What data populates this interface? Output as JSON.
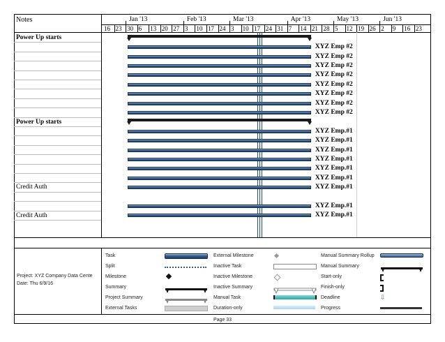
{
  "header": {
    "notes_label": "Notes",
    "months": [
      "Jan '13",
      "Feb '13",
      "Mar '13",
      "Apr '13",
      "May '13",
      "Jun '13"
    ],
    "days": [
      "16",
      "23",
      "30",
      "6",
      "13",
      "20",
      "27",
      "3",
      "10",
      "17",
      "24",
      "3",
      "10",
      "17",
      "24",
      "31",
      "7",
      "14",
      "21",
      "28",
      "5",
      "12",
      "19",
      "26",
      "2",
      "9",
      "16",
      "23"
    ]
  },
  "rows": [
    {
      "task": "Power Up starts",
      "task_style": "bold",
      "kind": "summary",
      "label": ""
    },
    {
      "task": "",
      "kind": "bar",
      "label": "XYZ Emp #2"
    },
    {
      "task": "",
      "kind": "bar",
      "label": "XYZ Emp #2"
    },
    {
      "task": "",
      "kind": "bar",
      "label": "XYZ Emp #2"
    },
    {
      "task": "",
      "kind": "bar",
      "label": "XYZ Emp #2"
    },
    {
      "task": "",
      "kind": "bar",
      "label": "XYZ Emp #2"
    },
    {
      "task": "",
      "kind": "bar",
      "label": "XYZ Emp #2"
    },
    {
      "task": "",
      "kind": "bar",
      "label": "XYZ Emp #2"
    },
    {
      "task": "",
      "kind": "bar",
      "label": "XYZ Emp #2"
    },
    {
      "task": "Power Up starts",
      "task_style": "bold",
      "kind": "summary",
      "label": ""
    },
    {
      "task": "",
      "kind": "bar",
      "label": "XYZ Emp.#1"
    },
    {
      "task": "",
      "kind": "bar",
      "label": "XYZ Emp.#1"
    },
    {
      "task": "",
      "kind": "bar",
      "label": "XYZ Emp.#1"
    },
    {
      "task": "",
      "kind": "bar",
      "label": "XYZ Emp.#1"
    },
    {
      "task": "",
      "kind": "bar",
      "label": "XYZ Emp.#1"
    },
    {
      "task": "",
      "kind": "bar",
      "label": "XYZ Emp.#1"
    },
    {
      "task": "Credit Auth",
      "task_style": "normal",
      "kind": "bar",
      "label": "XYZ Emp.#1"
    },
    {
      "task": "",
      "kind": "none",
      "label": ""
    },
    {
      "task": "",
      "kind": "bar",
      "label": "XYZ Emp.#1"
    },
    {
      "task": "Credit Auth",
      "task_style": "normal",
      "kind": "bar",
      "label": "XYZ Emp.#1"
    }
  ],
  "footer": {
    "project": "Project: XYZ Company Data Cente",
    "date": "Date: Thu 6/9/16",
    "page": "Page 33"
  },
  "legend": {
    "col1": [
      "Task",
      "Split",
      "Milestone",
      "Summary",
      "Project Summary",
      "External Tasks"
    ],
    "col2": [
      "External Milestone",
      "Inactive Task",
      "Inactive Milestone",
      "Inactive Summary",
      "Manual Task",
      "Duration-only"
    ],
    "col3": [
      "Manual Summary Rollup",
      "Manual Summary",
      "Start-only",
      "Finish-only",
      "Deadline",
      "Progress"
    ]
  },
  "colors": {
    "task_bar": "#2f5d8f",
    "summary_bar": "#1a1a1a",
    "manual_task": "#2aa6a6",
    "deadline_arrow": "#2e8b2e"
  }
}
